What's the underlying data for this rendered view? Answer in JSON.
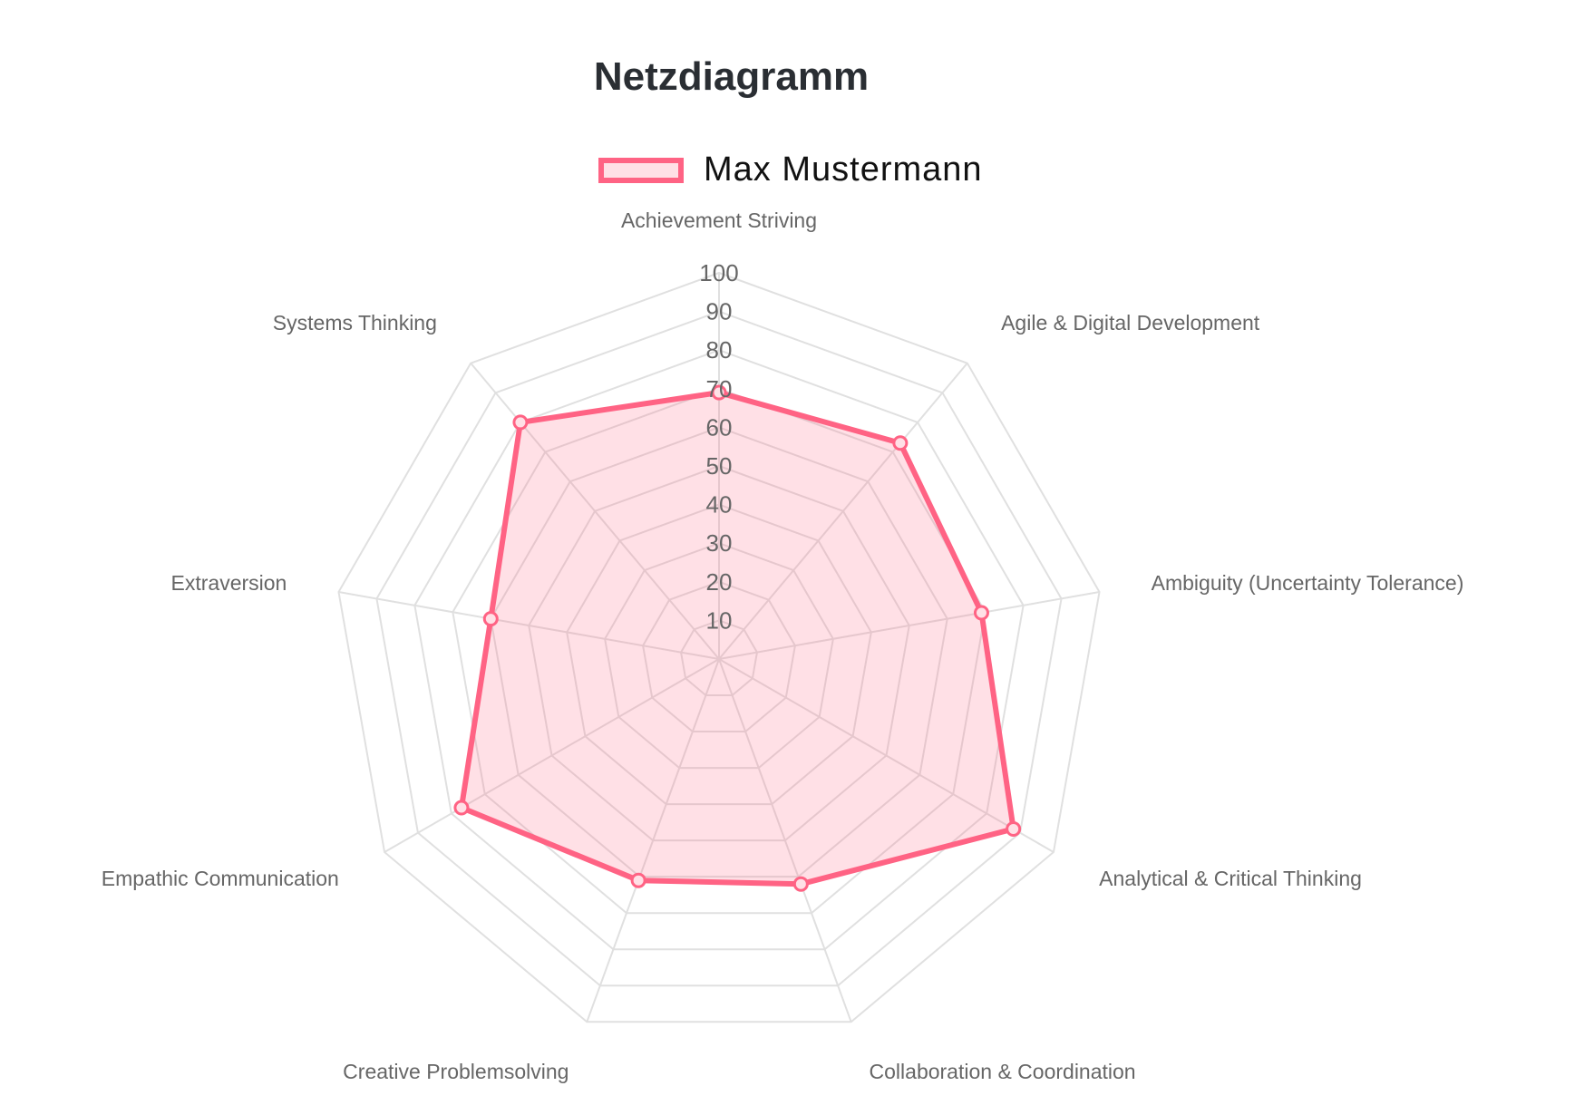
{
  "chart_data": {
    "type": "radar",
    "title": "Netzdiagramm",
    "labels": [
      "Achievement Striving",
      "Agile & Digital Development",
      "Ambiguity (Uncertainty Tolerance)",
      "Analytical & Critical Thinking",
      "Collaboration & Coordination",
      "Creative Problemsolving",
      "Empathic Communication",
      "Extraversion",
      "Systems Thinking"
    ],
    "series": [
      {
        "name": "Max Mustermann",
        "values": [
          69,
          73,
          69,
          88,
          62,
          61,
          77,
          60,
          80
        ]
      }
    ],
    "r_ticks": [
      10,
      20,
      30,
      40,
      50,
      60,
      70,
      80,
      90,
      100
    ],
    "r_range": [
      0,
      100
    ],
    "legend": "top",
    "grid": true,
    "colors": {
      "line": "#ff6384",
      "fill": "rgba(255,99,132,0.2)",
      "grid": "#e0e0e0",
      "label": "#666666"
    }
  }
}
